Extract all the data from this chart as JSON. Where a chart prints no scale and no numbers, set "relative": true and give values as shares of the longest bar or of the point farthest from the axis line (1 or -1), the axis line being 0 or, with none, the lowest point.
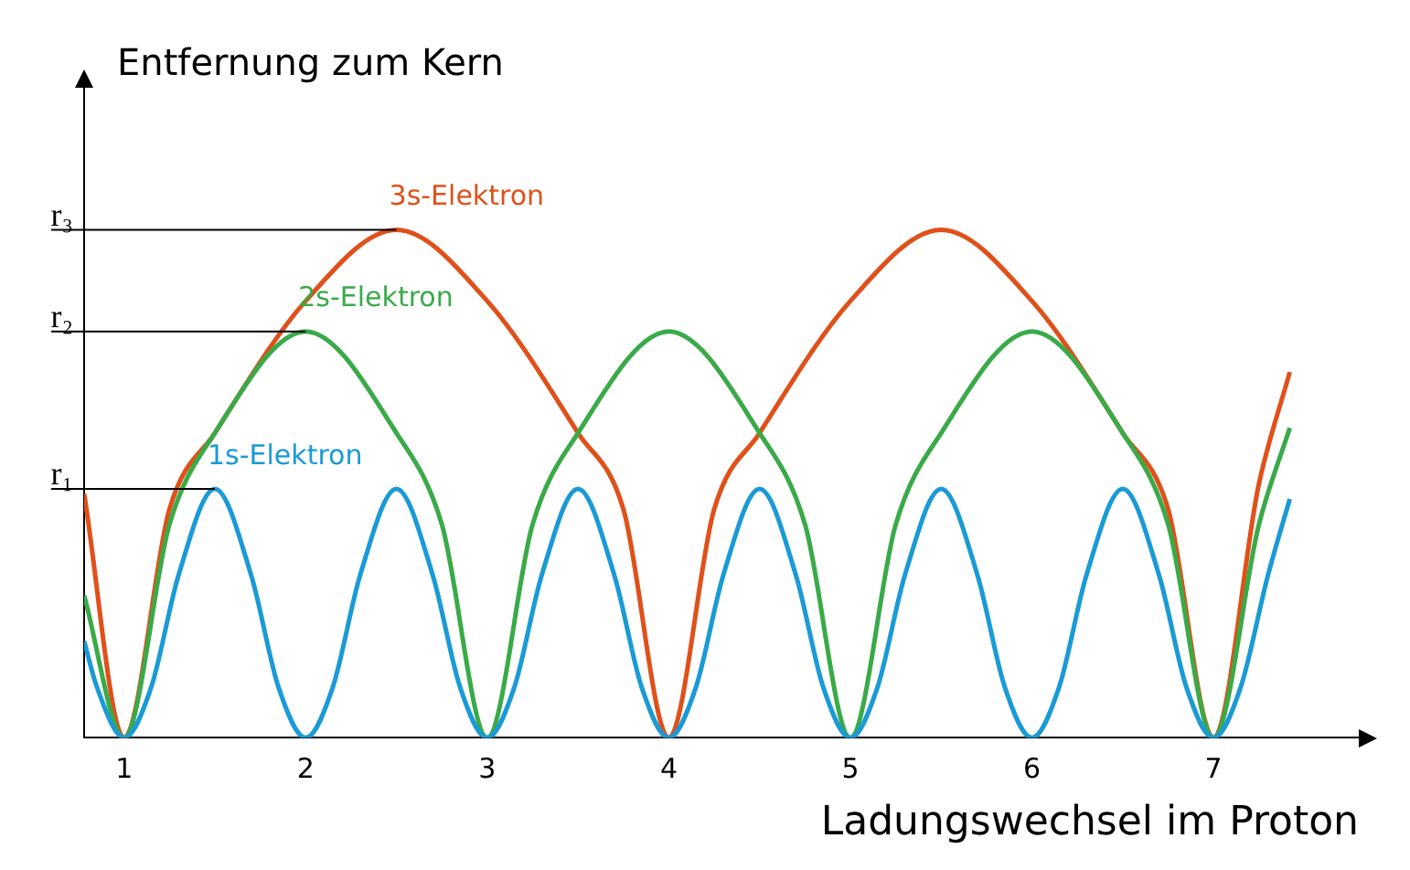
{
  "chart_data": {
    "type": "line",
    "relative": true,
    "ylabel": "Entfernung zum Kern",
    "xlabel": "Ladungswechsel im Proton",
    "xlim": [
      0.78,
      7.8
    ],
    "xticks": [
      1,
      2,
      3,
      4,
      5,
      6,
      7
    ],
    "grid": false,
    "legend": false,
    "marker": "none",
    "line_style": "solid",
    "ref_lines": [
      {
        "axis": "y",
        "value": 0.49,
        "label": "r₁",
        "color": "#000000"
      },
      {
        "axis": "y",
        "value": 0.8,
        "label": "r₂",
        "color": "#000000"
      },
      {
        "axis": "y",
        "value": 1,
        "label": "r₃",
        "color": "#000000"
      }
    ],
    "series": [
      {
        "name": "1s-Elektron",
        "color": "#1a9ad6",
        "x": [
          0.78,
          0.85,
          1,
          1.15,
          1.3,
          1.5,
          1.7,
          1.85,
          2,
          2.15,
          2.3,
          2.5,
          2.7,
          2.85,
          3,
          3.15,
          3.3,
          3.5,
          3.7,
          3.85,
          4,
          4.15,
          4.3,
          4.5,
          4.7,
          4.85,
          5,
          5.15,
          5.3,
          5.5,
          5.7,
          5.85,
          6,
          6.15,
          6.3,
          6.5,
          6.7,
          6.85,
          7,
          7.15,
          7.3,
          7.42
        ],
        "values": [
          0.19,
          0.1,
          0,
          0.1,
          0.32,
          0.49,
          0.32,
          0.1,
          0,
          0.1,
          0.32,
          0.49,
          0.32,
          0.1,
          0,
          0.1,
          0.32,
          0.49,
          0.32,
          0.1,
          0,
          0.1,
          0.32,
          0.49,
          0.32,
          0.1,
          0,
          0.1,
          0.32,
          0.49,
          0.32,
          0.1,
          0,
          0.1,
          0.32,
          0.49,
          0.32,
          0.1,
          0,
          0.1,
          0.32,
          0.47
        ]
      },
      {
        "name": "2s-Elektron",
        "color": "#3aaa48",
        "x": [
          0.78,
          1,
          1.25,
          1.5,
          2,
          2.5,
          2.75,
          3,
          3.25,
          3.5,
          4,
          4.5,
          4.75,
          5,
          5.25,
          5.5,
          6,
          6.5,
          6.75,
          7,
          7.25,
          7.42
        ],
        "values": [
          0.28,
          0,
          0.42,
          0.6,
          0.8,
          0.6,
          0.42,
          0,
          0.42,
          0.6,
          0.8,
          0.6,
          0.42,
          0,
          0.42,
          0.6,
          0.8,
          0.6,
          0.42,
          0,
          0.42,
          0.61
        ]
      },
      {
        "name": "3s-Elektron",
        "color": "#e0501a",
        "x": [
          0.78,
          1,
          1.25,
          1.5,
          2,
          2.5,
          3,
          3.5,
          3.75,
          4,
          4.25,
          4.5,
          5,
          5.5,
          6,
          6.5,
          6.75,
          7,
          7.25,
          7.42
        ],
        "values": [
          0.48,
          0,
          0.45,
          0.6,
          0.86,
          1,
          0.86,
          0.6,
          0.45,
          0,
          0.45,
          0.6,
          0.86,
          1,
          0.86,
          0.6,
          0.45,
          0,
          0.5,
          0.72
        ]
      }
    ]
  }
}
